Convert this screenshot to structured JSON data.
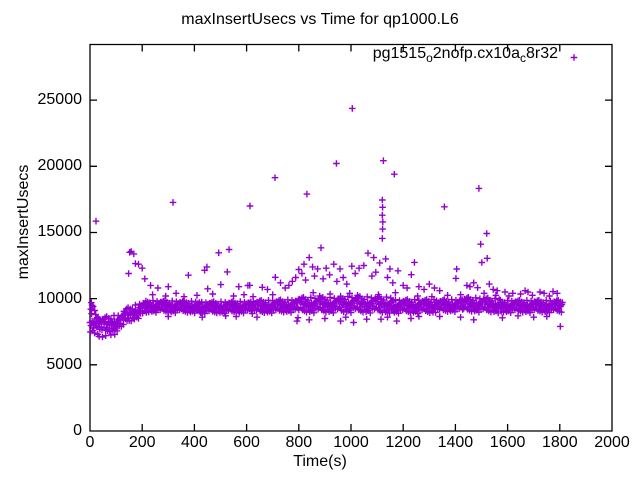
{
  "background_color": "#ffffff",
  "axis_color": "#000000",
  "chart_data": {
    "type": "scatter",
    "title": "maxInsertUsecs vs Time for qp1000.L6",
    "xlabel": "Time(s)",
    "ylabel": "maxInsertUsecs",
    "xlim": [
      0,
      2000
    ],
    "ylim": [
      0,
      29200
    ],
    "xticks": [
      0,
      200,
      400,
      600,
      800,
      1000,
      1200,
      1400,
      1600,
      1800,
      2000
    ],
    "yticks": [
      0,
      5000,
      10000,
      15000,
      20000,
      25000
    ],
    "grid": false,
    "tick_style": "inward-mirrored",
    "legend": {
      "position": "top-right-inside",
      "marker": "plus",
      "parts": {
        "p1": "pg1515",
        "s1": "o",
        "p2": "2nofp.cx10a",
        "s2": "c",
        "p3": "8r32"
      }
    },
    "series": [
      {
        "name": "pg1515_o2nofp.cx10a_c8r32",
        "marker": "plus",
        "color": "#9400d3",
        "points_outliers": [
          [
            23,
            15850
          ],
          [
            318,
            17270
          ],
          [
            613,
            17000
          ],
          [
            709,
            19140
          ],
          [
            831,
            17900
          ],
          [
            885,
            13840
          ],
          [
            944,
            20210
          ],
          [
            1005,
            24370
          ],
          [
            1065,
            13430
          ],
          [
            1087,
            13100
          ],
          [
            1120,
            17450
          ],
          [
            1121,
            16900
          ],
          [
            1120,
            16300
          ],
          [
            1122,
            15800
          ],
          [
            1121,
            15250
          ],
          [
            1120,
            14550
          ],
          [
            1124,
            20420
          ],
          [
            1133,
            13000
          ],
          [
            1166,
            19400
          ],
          [
            1243,
            12740
          ],
          [
            1231,
            11810
          ],
          [
            1358,
            16940
          ],
          [
            1402,
            11530
          ],
          [
            1405,
            12240
          ],
          [
            1490,
            18330
          ],
          [
            1497,
            14110
          ],
          [
            1520,
            14920
          ],
          [
            1522,
            13050
          ],
          [
            1501,
            12730
          ],
          [
            152,
            13500
          ],
          [
            158,
            13560
          ],
          [
            168,
            13380
          ],
          [
            174,
            12650
          ],
          [
            186,
            12600
          ],
          [
            200,
            12300
          ],
          [
            377,
            11770
          ],
          [
            439,
            12140
          ],
          [
            448,
            12400
          ],
          [
            493,
            13460
          ],
          [
            533,
            13710
          ],
          [
            526,
            12020
          ],
          [
            605,
            10990
          ],
          [
            612,
            11010
          ],
          [
            660,
            10860
          ],
          [
            710,
            11610
          ]
        ],
        "points_scatter": [
          [
            148,
            11900
          ],
          [
            210,
            11500
          ],
          [
            232,
            11000
          ],
          [
            240,
            10300
          ],
          [
            260,
            10800
          ],
          [
            290,
            10200
          ],
          [
            300,
            10900
          ],
          [
            330,
            10400
          ],
          [
            360,
            10150
          ],
          [
            410,
            10250
          ],
          [
            451,
            10740
          ],
          [
            470,
            10350
          ],
          [
            501,
            11060
          ],
          [
            550,
            10200
          ],
          [
            570,
            10900
          ],
          [
            590,
            10300
          ],
          [
            625,
            10150
          ],
          [
            680,
            10700
          ],
          [
            700,
            10300
          ],
          [
            730,
            11200
          ],
          [
            748,
            10800
          ],
          [
            762,
            11000
          ],
          [
            775,
            11300
          ],
          [
            788,
            11600
          ],
          [
            800,
            12200
          ],
          [
            812,
            11900
          ],
          [
            820,
            12600
          ],
          [
            826,
            11400
          ],
          [
            840,
            13100
          ],
          [
            853,
            12400
          ],
          [
            855,
            10450
          ],
          [
            860,
            11700
          ],
          [
            872,
            12250
          ],
          [
            880,
            10200
          ],
          [
            893,
            11500
          ],
          [
            905,
            12300
          ],
          [
            918,
            11800
          ],
          [
            920,
            10350
          ],
          [
            934,
            12600
          ],
          [
            946,
            11300
          ],
          [
            958,
            12250
          ],
          [
            970,
            11600
          ],
          [
            984,
            11100
          ],
          [
            995,
            10400
          ],
          [
            1003,
            12450
          ],
          [
            1016,
            11900
          ],
          [
            1025,
            10250
          ],
          [
            1031,
            12300
          ],
          [
            1049,
            12500
          ],
          [
            1080,
            11700
          ],
          [
            1095,
            12000
          ],
          [
            1105,
            10300
          ],
          [
            1110,
            12700
          ],
          [
            1140,
            11600
          ],
          [
            1149,
            12250
          ],
          [
            1160,
            11200
          ],
          [
            1170,
            10450
          ],
          [
            1180,
            12100
          ],
          [
            1200,
            11000
          ],
          [
            1215,
            10800
          ],
          [
            1255,
            10200
          ],
          [
            1260,
            10900
          ],
          [
            1280,
            10700
          ],
          [
            1300,
            11100
          ],
          [
            1310,
            10150
          ],
          [
            1320,
            10800
          ],
          [
            1340,
            10600
          ],
          [
            1370,
            10250
          ],
          [
            1420,
            10300
          ],
          [
            1444,
            11000
          ],
          [
            1456,
            10900
          ],
          [
            1470,
            11200
          ],
          [
            1485,
            10830
          ],
          [
            1510,
            10400
          ],
          [
            1530,
            11100
          ],
          [
            1545,
            10700
          ],
          [
            1555,
            10250
          ],
          [
            1560,
            10600
          ],
          [
            1590,
            10500
          ],
          [
            1605,
            10200
          ],
          [
            1620,
            10400
          ],
          [
            1650,
            10350
          ],
          [
            1667,
            10600
          ],
          [
            1678,
            10500
          ],
          [
            1695,
            10250
          ],
          [
            1724,
            10500
          ],
          [
            1740,
            10400
          ],
          [
            1760,
            10200
          ],
          [
            1774,
            10530
          ],
          [
            1790,
            10400
          ]
        ],
        "points_low": [
          [
            35,
            7150
          ],
          [
            48,
            7100
          ],
          [
            60,
            7200
          ],
          [
            80,
            7250
          ],
          [
            95,
            7300
          ],
          [
            300,
            8650
          ],
          [
            430,
            8600
          ],
          [
            520,
            8700
          ],
          [
            560,
            8650
          ],
          [
            640,
            8600
          ],
          [
            793,
            8300
          ],
          [
            797,
            8560
          ],
          [
            840,
            8400
          ],
          [
            900,
            8500
          ],
          [
            960,
            8300
          ],
          [
            980,
            8600
          ],
          [
            1010,
            8200
          ],
          [
            1060,
            8450
          ],
          [
            1115,
            8450
          ],
          [
            1140,
            8600
          ],
          [
            1175,
            8300
          ],
          [
            1230,
            8500
          ],
          [
            1260,
            8650
          ],
          [
            1340,
            8650
          ],
          [
            1420,
            8600
          ],
          [
            1470,
            8400
          ],
          [
            1580,
            8550
          ],
          [
            1640,
            8700
          ],
          [
            1700,
            8600
          ],
          [
            1750,
            8650
          ],
          [
            1802,
            7900
          ]
        ],
        "points_early_high": [
          [
            3,
            9200
          ],
          [
            5,
            9700
          ],
          [
            8,
            9500
          ],
          [
            12,
            9400
          ],
          [
            18,
            9100
          ]
        ],
        "band_segments": [
          {
            "t0": 0,
            "t1": 30,
            "dt": 2,
            "c0": 8100,
            "c1": 8150,
            "spread": 800
          },
          {
            "t0": 30,
            "t1": 130,
            "dt": 2,
            "c0": 7900,
            "c1": 8250,
            "spread": 650
          },
          {
            "t0": 130,
            "t1": 215,
            "dt": 2,
            "c0": 8600,
            "c1": 9300,
            "spread": 600
          },
          {
            "t0": 215,
            "t1": 420,
            "dt": 2,
            "c0": 9400,
            "c1": 9350,
            "spread": 480
          },
          {
            "t0": 420,
            "t1": 620,
            "dt": 2,
            "c0": 9300,
            "c1": 9350,
            "spread": 470
          },
          {
            "t0": 620,
            "t1": 800,
            "dt": 2,
            "c0": 9350,
            "c1": 9450,
            "spread": 520
          },
          {
            "t0": 800,
            "t1": 960,
            "dt": 2,
            "c0": 9500,
            "c1": 9500,
            "spread": 620
          },
          {
            "t0": 960,
            "t1": 1160,
            "dt": 2,
            "c0": 9550,
            "c1": 9500,
            "spread": 650
          },
          {
            "t0": 1160,
            "t1": 1320,
            "dt": 2,
            "c0": 9400,
            "c1": 9400,
            "spread": 550
          },
          {
            "t0": 1320,
            "t1": 1430,
            "dt": 2,
            "c0": 9420,
            "c1": 9480,
            "spread": 500
          },
          {
            "t0": 1430,
            "t1": 1570,
            "dt": 2,
            "c0": 9550,
            "c1": 9450,
            "spread": 580
          },
          {
            "t0": 1570,
            "t1": 1810,
            "dt": 2,
            "c0": 9400,
            "c1": 9400,
            "spread": 500
          }
        ],
        "jitter_cycle": [
          0.12,
          -0.58,
          0.83,
          -0.21,
          0.45,
          -0.92,
          0.31,
          0.67,
          -0.44,
          0.05,
          0.74,
          -0.66,
          0.22,
          -0.13,
          0.94,
          -0.35,
          0.51,
          -0.78,
          0.08,
          0.39,
          -0.55,
          0.88,
          -0.02,
          0.61,
          -0.29,
          0.17,
          -0.85,
          0.47,
          -0.09,
          0.71,
          -0.48,
          0.26,
          -0.7,
          0.56,
          -0.18,
          0.97,
          -0.38
        ]
      }
    ]
  }
}
